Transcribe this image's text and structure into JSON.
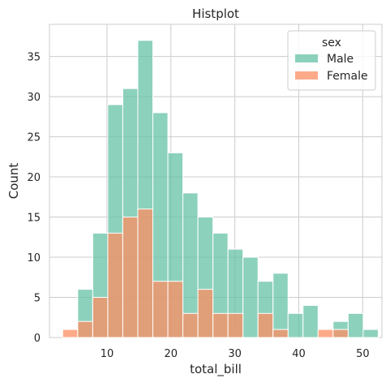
{
  "chart_data": {
    "type": "histogram",
    "title": "Histplot",
    "xlabel": "total_bill",
    "ylabel": "Count",
    "xlim": [
      1.0,
      53.0
    ],
    "ylim": [
      0,
      39
    ],
    "xticks": [
      10,
      20,
      30,
      40,
      50
    ],
    "yticks": [
      0,
      5,
      10,
      15,
      20,
      25,
      30,
      35
    ],
    "bin_edges": [
      3.07,
      5.42,
      7.77,
      10.12,
      12.47,
      14.82,
      17.17,
      19.52,
      21.87,
      24.22,
      26.57,
      28.92,
      31.27,
      33.62,
      35.97,
      38.32,
      40.67,
      43.02,
      45.37,
      47.72,
      50.07,
      52.42
    ],
    "series": [
      {
        "name": "Male",
        "color": "#66c2a5",
        "values": [
          0,
          6,
          13,
          29,
          31,
          37,
          28,
          23,
          18,
          15,
          13,
          11,
          10,
          7,
          8,
          3,
          4,
          0,
          2,
          3,
          1
        ]
      },
      {
        "name": "Female",
        "color": "#fc8d62",
        "values": [
          1,
          2,
          5,
          13,
          15,
          16,
          7,
          7,
          3,
          6,
          3,
          3,
          0,
          3,
          1,
          0,
          0,
          1,
          1,
          0,
          0
        ]
      }
    ],
    "grid": true,
    "legend": {
      "title": "sex",
      "position": "top-right"
    }
  }
}
